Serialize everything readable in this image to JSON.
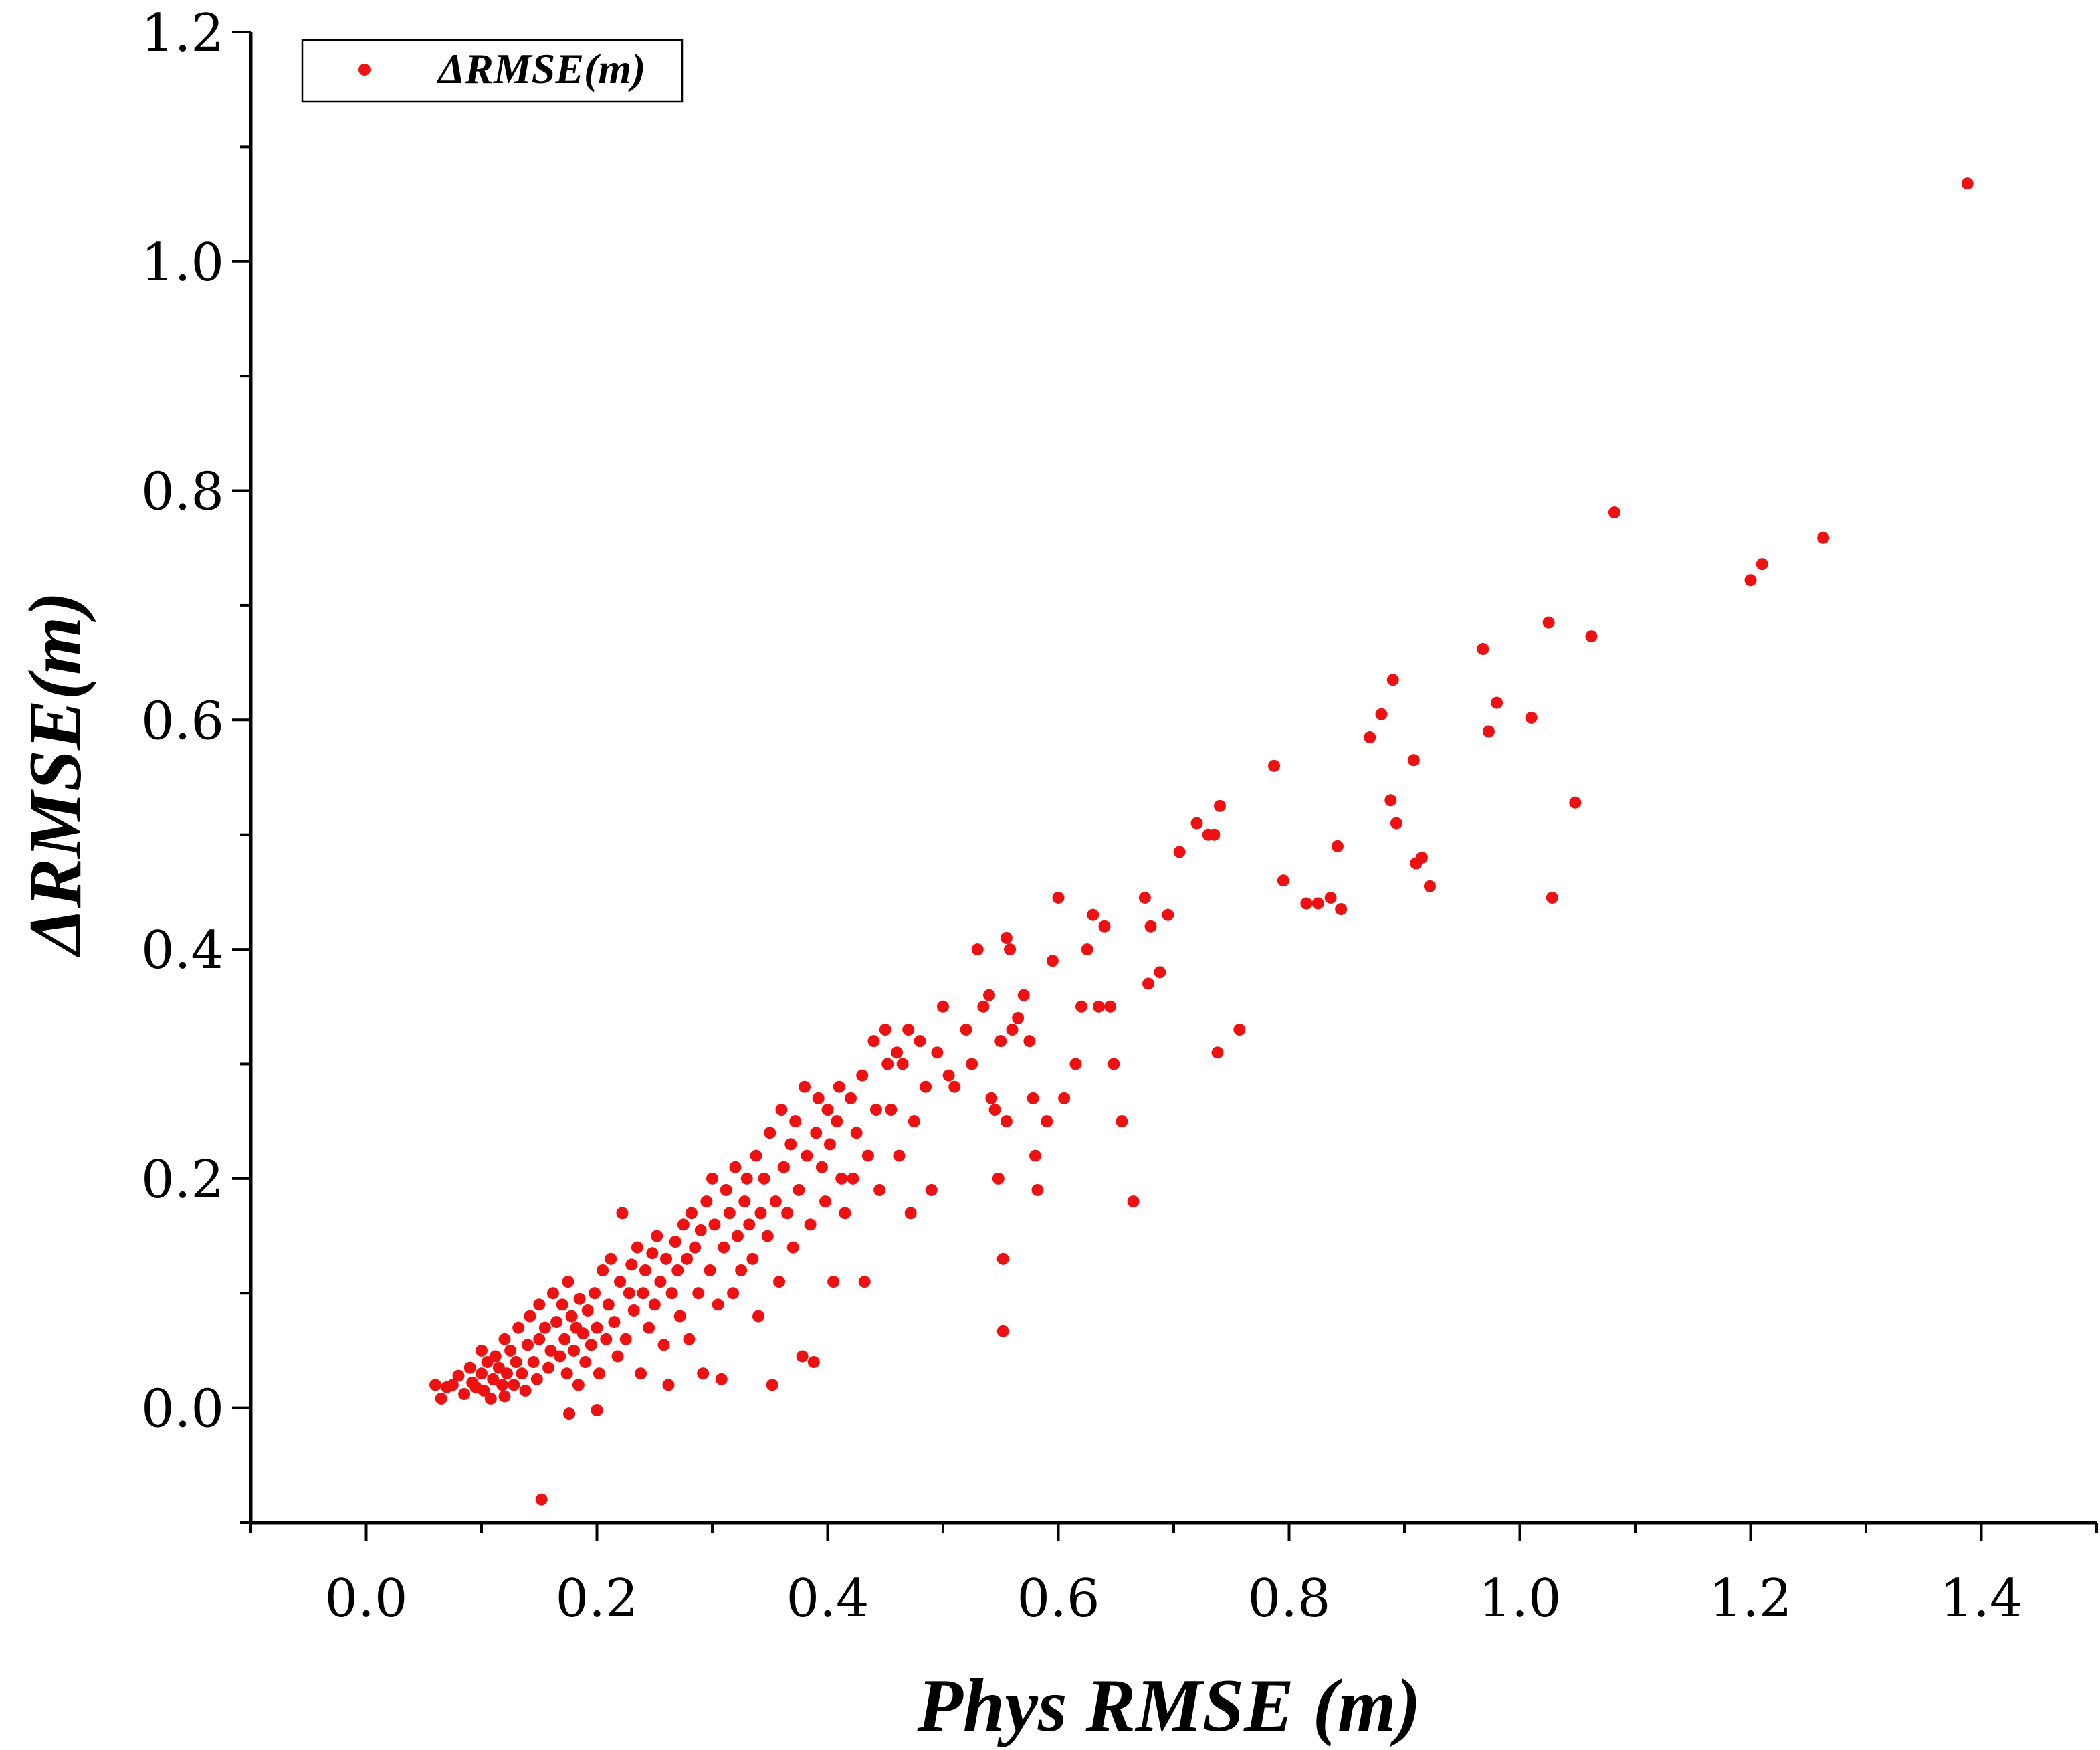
{
  "chart_data": {
    "type": "scatter",
    "xlabel": "Phys RMSE (m)",
    "ylabel": "ΔRMSE(m)",
    "xlim": [
      -0.1,
      1.5
    ],
    "ylim": [
      -0.1,
      1.2
    ],
    "x_ticks": [
      "0.0",
      "0.2",
      "0.4",
      "0.6",
      "0.8",
      "1.0",
      "1.2",
      "1.4"
    ],
    "y_ticks": [
      "0.0",
      "0.2",
      "0.4",
      "0.6",
      "0.8",
      "1.0",
      "1.2"
    ],
    "legend_position": "top-left",
    "grid": false,
    "colors": {
      "marker": "#ee1111",
      "axis": "#000000"
    },
    "series": [
      {
        "name": "ΔRMSE(m)",
        "points": [
          [
            0.06,
            0.02
          ],
          [
            0.065,
            0.008
          ],
          [
            0.07,
            0.018
          ],
          [
            0.075,
            0.02
          ],
          [
            0.08,
            0.028
          ],
          [
            0.085,
            0.012
          ],
          [
            0.09,
            0.035
          ],
          [
            0.092,
            0.022
          ],
          [
            0.095,
            0.018
          ],
          [
            0.1,
            0.05
          ],
          [
            0.1,
            0.03
          ],
          [
            0.102,
            0.015
          ],
          [
            0.105,
            0.04
          ],
          [
            0.108,
            0.008
          ],
          [
            0.11,
            0.025
          ],
          [
            0.112,
            0.045
          ],
          [
            0.115,
            0.035
          ],
          [
            0.118,
            0.02
          ],
          [
            0.12,
            0.06
          ],
          [
            0.12,
            0.01
          ],
          [
            0.122,
            0.03
          ],
          [
            0.125,
            0.05
          ],
          [
            0.128,
            0.02
          ],
          [
            0.13,
            0.04
          ],
          [
            0.132,
            0.07
          ],
          [
            0.135,
            0.03
          ],
          [
            0.138,
            0.015
          ],
          [
            0.14,
            0.055
          ],
          [
            0.142,
            0.08
          ],
          [
            0.145,
            0.04
          ],
          [
            0.148,
            0.025
          ],
          [
            0.15,
            0.09
          ],
          [
            0.15,
            0.06
          ],
          [
            0.152,
            -0.08
          ],
          [
            0.155,
            0.07
          ],
          [
            0.158,
            0.035
          ],
          [
            0.16,
            0.05
          ],
          [
            0.162,
            0.1
          ],
          [
            0.165,
            0.075
          ],
          [
            0.168,
            0.045
          ],
          [
            0.17,
            0.09
          ],
          [
            0.172,
            0.06
          ],
          [
            0.174,
            0.03
          ],
          [
            0.175,
            0.11
          ],
          [
            0.176,
            -0.005
          ],
          [
            0.178,
            0.08
          ],
          [
            0.18,
            0.05
          ],
          [
            0.182,
            0.07
          ],
          [
            0.184,
            0.02
          ],
          [
            0.185,
            0.095
          ],
          [
            0.188,
            0.065
          ],
          [
            0.19,
            0.04
          ],
          [
            0.192,
            0.085
          ],
          [
            0.195,
            0.055
          ],
          [
            0.198,
            0.1
          ],
          [
            0.2,
            0.07
          ],
          [
            0.2,
            -0.002
          ],
          [
            0.202,
            0.03
          ],
          [
            0.205,
            0.12
          ],
          [
            0.208,
            0.06
          ],
          [
            0.21,
            0.09
          ],
          [
            0.212,
            0.13
          ],
          [
            0.215,
            0.075
          ],
          [
            0.218,
            0.045
          ],
          [
            0.22,
            0.11
          ],
          [
            0.222,
            0.17
          ],
          [
            0.225,
            0.06
          ],
          [
            0.228,
            0.1
          ],
          [
            0.23,
            0.125
          ],
          [
            0.232,
            0.085
          ],
          [
            0.235,
            0.14
          ],
          [
            0.238,
            0.03
          ],
          [
            0.24,
            0.1
          ],
          [
            0.242,
            0.12
          ],
          [
            0.245,
            0.07
          ],
          [
            0.248,
            0.135
          ],
          [
            0.25,
            0.09
          ],
          [
            0.252,
            0.15
          ],
          [
            0.255,
            0.11
          ],
          [
            0.258,
            0.055
          ],
          [
            0.26,
            0.13
          ],
          [
            0.262,
            0.02
          ],
          [
            0.265,
            0.1
          ],
          [
            0.268,
            0.145
          ],
          [
            0.27,
            0.12
          ],
          [
            0.272,
            0.08
          ],
          [
            0.275,
            0.16
          ],
          [
            0.278,
            0.13
          ],
          [
            0.28,
            0.06
          ],
          [
            0.282,
            0.17
          ],
          [
            0.285,
            0.14
          ],
          [
            0.288,
            0.1
          ],
          [
            0.29,
            0.155
          ],
          [
            0.292,
            0.03
          ],
          [
            0.295,
            0.18
          ],
          [
            0.298,
            0.12
          ],
          [
            0.3,
            0.2
          ],
          [
            0.302,
            0.16
          ],
          [
            0.305,
            0.09
          ],
          [
            0.308,
            0.025
          ],
          [
            0.31,
            0.14
          ],
          [
            0.312,
            0.19
          ],
          [
            0.315,
            0.17
          ],
          [
            0.318,
            0.1
          ],
          [
            0.32,
            0.21
          ],
          [
            0.322,
            0.15
          ],
          [
            0.325,
            0.12
          ],
          [
            0.328,
            0.18
          ],
          [
            0.33,
            0.2
          ],
          [
            0.332,
            0.16
          ],
          [
            0.335,
            0.13
          ],
          [
            0.338,
            0.22
          ],
          [
            0.34,
            0.08
          ],
          [
            0.342,
            0.17
          ],
          [
            0.345,
            0.2
          ],
          [
            0.348,
            0.15
          ],
          [
            0.35,
            0.24
          ],
          [
            0.352,
            0.02
          ],
          [
            0.355,
            0.18
          ],
          [
            0.358,
            0.11
          ],
          [
            0.36,
            0.26
          ],
          [
            0.362,
            0.21
          ],
          [
            0.365,
            0.17
          ],
          [
            0.368,
            0.23
          ],
          [
            0.37,
            0.14
          ],
          [
            0.372,
            0.25
          ],
          [
            0.375,
            0.19
          ],
          [
            0.378,
            0.045
          ],
          [
            0.38,
            0.28
          ],
          [
            0.382,
            0.22
          ],
          [
            0.385,
            0.16
          ],
          [
            0.388,
            0.04
          ],
          [
            0.39,
            0.24
          ],
          [
            0.392,
            0.27
          ],
          [
            0.395,
            0.21
          ],
          [
            0.398,
            0.18
          ],
          [
            0.4,
            0.26
          ],
          [
            0.402,
            0.23
          ],
          [
            0.405,
            0.11
          ],
          [
            0.408,
            0.25
          ],
          [
            0.41,
            0.28
          ],
          [
            0.412,
            0.2
          ],
          [
            0.415,
            0.17
          ],
          [
            0.42,
            0.27
          ],
          [
            0.422,
            0.2
          ],
          [
            0.425,
            0.24
          ],
          [
            0.43,
            0.29
          ],
          [
            0.432,
            0.11
          ],
          [
            0.435,
            0.22
          ],
          [
            0.44,
            0.32
          ],
          [
            0.442,
            0.26
          ],
          [
            0.445,
            0.19
          ],
          [
            0.45,
            0.33
          ],
          [
            0.452,
            0.3
          ],
          [
            0.455,
            0.26
          ],
          [
            0.46,
            0.31
          ],
          [
            0.462,
            0.22
          ],
          [
            0.465,
            0.3
          ],
          [
            0.47,
            0.33
          ],
          [
            0.472,
            0.17
          ],
          [
            0.475,
            0.25
          ],
          [
            0.48,
            0.32
          ],
          [
            0.485,
            0.28
          ],
          [
            0.49,
            0.19
          ],
          [
            0.495,
            0.31
          ],
          [
            0.5,
            0.35
          ],
          [
            0.505,
            0.29
          ],
          [
            0.51,
            0.28
          ],
          [
            0.52,
            0.33
          ],
          [
            0.525,
            0.3
          ],
          [
            0.53,
            0.4
          ],
          [
            0.535,
            0.35
          ],
          [
            0.54,
            0.36
          ],
          [
            0.542,
            0.27
          ],
          [
            0.545,
            0.26
          ],
          [
            0.548,
            0.2
          ],
          [
            0.55,
            0.32
          ],
          [
            0.552,
            0.13
          ],
          [
            0.552,
            0.067
          ],
          [
            0.555,
            0.41
          ],
          [
            0.555,
            0.25
          ],
          [
            0.558,
            0.4
          ],
          [
            0.56,
            0.33
          ],
          [
            0.565,
            0.34
          ],
          [
            0.57,
            0.36
          ],
          [
            0.575,
            0.32
          ],
          [
            0.578,
            0.27
          ],
          [
            0.58,
            0.22
          ],
          [
            0.582,
            0.19
          ],
          [
            0.59,
            0.25
          ],
          [
            0.595,
            0.39
          ],
          [
            0.6,
            0.445
          ],
          [
            0.605,
            0.27
          ],
          [
            0.615,
            0.3
          ],
          [
            0.62,
            0.35
          ],
          [
            0.625,
            0.4
          ],
          [
            0.63,
            0.43
          ],
          [
            0.635,
            0.35
          ],
          [
            0.64,
            0.42
          ],
          [
            0.645,
            0.35
          ],
          [
            0.648,
            0.3
          ],
          [
            0.655,
            0.25
          ],
          [
            0.665,
            0.18
          ],
          [
            0.675,
            0.445
          ],
          [
            0.678,
            0.37
          ],
          [
            0.68,
            0.42
          ],
          [
            0.688,
            0.38
          ],
          [
            0.695,
            0.43
          ],
          [
            0.705,
            0.485
          ],
          [
            0.72,
            0.51
          ],
          [
            0.73,
            0.5
          ],
          [
            0.735,
            0.5
          ],
          [
            0.738,
            0.31
          ],
          [
            0.74,
            0.525
          ],
          [
            0.757,
            0.33
          ],
          [
            0.787,
            0.56
          ],
          [
            0.795,
            0.46
          ],
          [
            0.815,
            0.44
          ],
          [
            0.825,
            0.44
          ],
          [
            0.836,
            0.445
          ],
          [
            0.842,
            0.49
          ],
          [
            0.845,
            0.435
          ],
          [
            0.87,
            0.585
          ],
          [
            0.88,
            0.605
          ],
          [
            0.888,
            0.53
          ],
          [
            0.89,
            0.635
          ],
          [
            0.893,
            0.51
          ],
          [
            0.908,
            0.565
          ],
          [
            0.91,
            0.475
          ],
          [
            0.915,
            0.48
          ],
          [
            0.922,
            0.455
          ],
          [
            0.968,
            0.662
          ],
          [
            0.973,
            0.59
          ],
          [
            0.98,
            0.615
          ],
          [
            1.01,
            0.602
          ],
          [
            1.025,
            0.685
          ],
          [
            1.028,
            0.445
          ],
          [
            1.048,
            0.528
          ],
          [
            1.062,
            0.673
          ],
          [
            1.082,
            0.781
          ],
          [
            1.2,
            0.722
          ],
          [
            1.21,
            0.736
          ],
          [
            1.263,
            0.759
          ],
          [
            1.388,
            1.068
          ]
        ]
      }
    ]
  }
}
